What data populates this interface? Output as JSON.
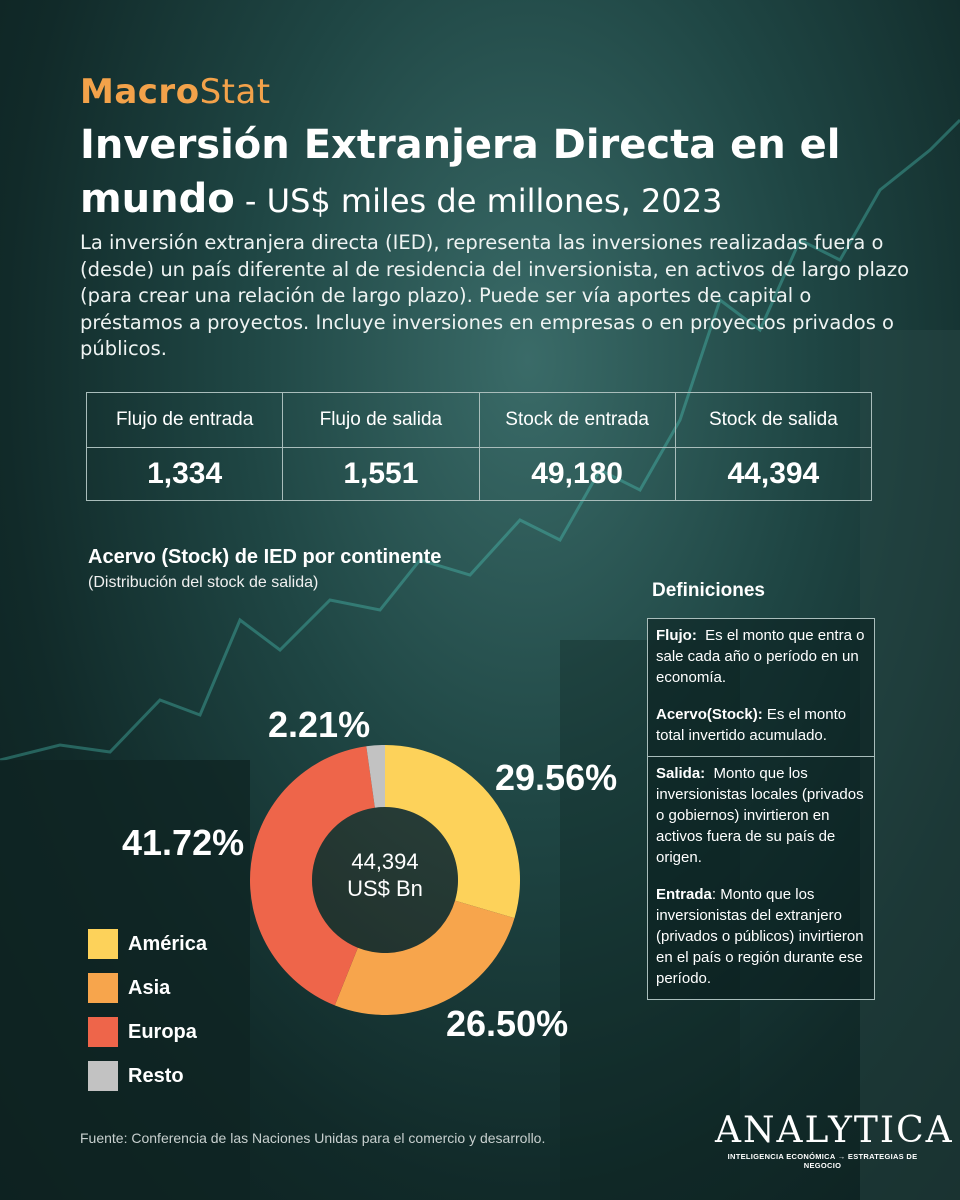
{
  "brand": {
    "bold": "Macro",
    "light": "Stat"
  },
  "title": {
    "main": "Inversión Extranjera Directa en el mundo",
    "separator": " - ",
    "sub": "US$ miles de millones, 2023"
  },
  "intro": "La inversión extranjera directa (IED), representa las inversiones realizadas fuera o (desde) un país diferente al de residencia del inversionista, en activos de largo plazo (para crear una relación de largo plazo). Puede ser vía aportes de capital o préstamos a proyectos. Incluye inversiones en empresas o en proyectos privados o públicos.",
  "kpis": [
    {
      "label": "Flujo de entrada",
      "value": "1,334"
    },
    {
      "label": "Flujo de salida",
      "value": "1,551"
    },
    {
      "label": "Stock de entrada",
      "value": "49,180"
    },
    {
      "label": "Stock de salida",
      "value": "44,394"
    }
  ],
  "chart_data": {
    "type": "pie",
    "title": "Acervo (Stock) de IED por continente",
    "subtitle": "(Distribución del stock de salida)",
    "categories": [
      "América",
      "Asia",
      "Europa",
      "Resto"
    ],
    "values": [
      29.56,
      26.5,
      41.72,
      2.21
    ],
    "labels": [
      "29.56%",
      "26.50%",
      "41.72%",
      "2.21%"
    ],
    "colors": [
      "#fdd25a",
      "#f7a54c",
      "#ee654a",
      "#c2c2c2"
    ],
    "center_value": "44,394",
    "center_unit": "US$ Bn",
    "legend": "bottom-left"
  },
  "definitions": {
    "heading": "Definiciones",
    "flujo_term": "Flujo:",
    "flujo_text": "Es el monto que entra o sale cada año o período en un economía.",
    "acervo_term": "Acervo(Stock):",
    "acervo_text": "Es el monto total invertido acumulado.",
    "salida_term": "Salida:",
    "salida_text": "Monto que los inversionistas locales (privados o gobiernos) invirtieron en activos fuera de su país de origen.",
    "entrada_term": "Entrada",
    "entrada_text": ": Monto que los inversionistas del extranjero (privados o públicos) invirtieron en el país o región durante ese período."
  },
  "source": "Fuente: Conferencia de las Naciones Unidas para el comercio y desarrollo.",
  "logo": {
    "name": "ANALYTICA",
    "tag_left": "INTELIGENCIA ECONÓMICA",
    "tag_right": "ESTRATEGIAS DE NEGOCIO"
  }
}
